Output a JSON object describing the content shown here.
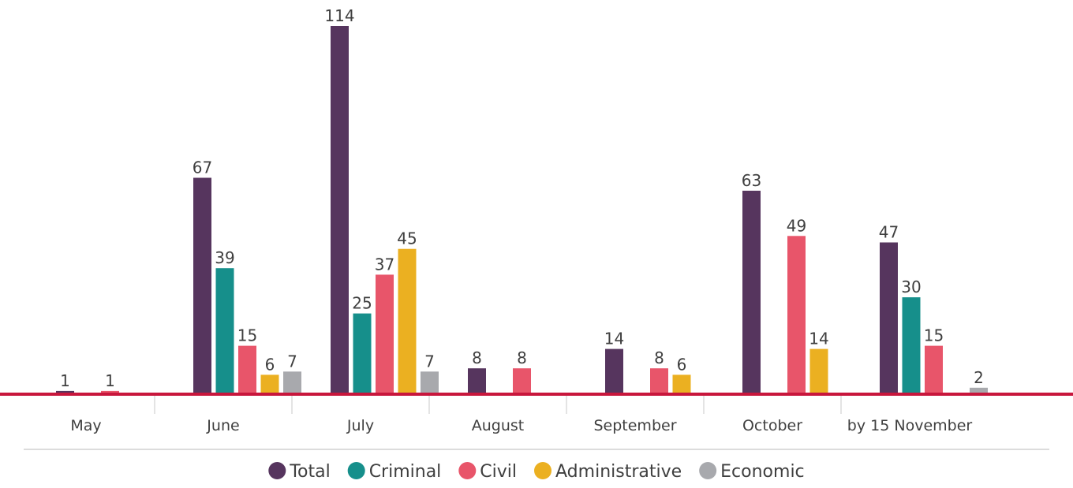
{
  "chart_data": {
    "type": "bar",
    "categories": [
      "May",
      "June",
      "July",
      "August",
      "September",
      "October",
      "by 15 November"
    ],
    "series": [
      {
        "name": "Total",
        "values": [
          1,
          67,
          114,
          8,
          14,
          63,
          47
        ]
      },
      {
        "name": "Criminal",
        "values": [
          null,
          39,
          25,
          null,
          null,
          null,
          30
        ]
      },
      {
        "name": "Civil",
        "values": [
          1,
          15,
          37,
          8,
          8,
          49,
          15
        ]
      },
      {
        "name": "Administrative",
        "values": [
          null,
          6,
          45,
          null,
          6,
          14,
          null
        ]
      },
      {
        "name": "Economic",
        "values": [
          null,
          7,
          7,
          null,
          null,
          null,
          2
        ]
      }
    ],
    "ylim": [
      0,
      114
    ],
    "legend_position": "bottom",
    "grid": false,
    "colors": {
      "Total": "#56355e",
      "Criminal": "#168f8b",
      "Civil": "#e8556a",
      "Administrative": "#ebb021",
      "Economic": "#a8a9ad",
      "baseline": "#c8163c",
      "separator": "#c8c8c8"
    }
  }
}
